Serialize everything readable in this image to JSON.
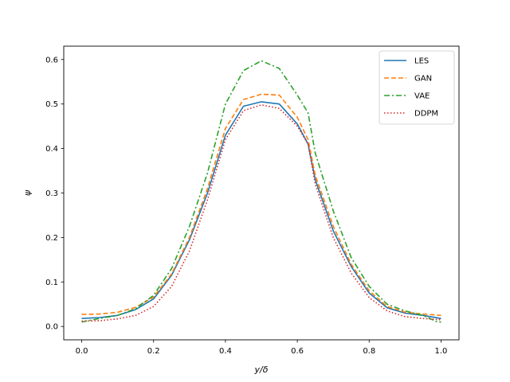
{
  "chart_data": {
    "type": "line",
    "title": "",
    "xlabel": "y/δ",
    "ylabel": "ψ",
    "xlim": [
      -0.05,
      1.05
    ],
    "ylim": [
      -0.03,
      0.63
    ],
    "xticks": [
      0.0,
      0.2,
      0.4,
      0.6,
      0.8,
      1.0
    ],
    "xtick_labels": [
      "0.0",
      "0.2",
      "0.4",
      "0.6",
      "0.8",
      "1.0"
    ],
    "yticks": [
      0.0,
      0.1,
      0.2,
      0.3,
      0.4,
      0.5,
      0.6
    ],
    "ytick_labels": [
      "0.0",
      "0.1",
      "0.2",
      "0.3",
      "0.4",
      "0.5",
      "0.6"
    ],
    "grid": false,
    "legend_position": "top-right",
    "series": [
      {
        "name": "LES",
        "color": "#1f77b4",
        "style": "solid",
        "x": [
          0.0,
          0.05,
          0.1,
          0.15,
          0.2,
          0.25,
          0.3,
          0.35,
          0.4,
          0.45,
          0.5,
          0.55,
          0.6,
          0.63,
          0.65,
          0.7,
          0.75,
          0.8,
          0.85,
          0.9,
          0.95,
          1.0
        ],
        "y": [
          0.018,
          0.02,
          0.025,
          0.038,
          0.062,
          0.115,
          0.195,
          0.3,
          0.43,
          0.495,
          0.505,
          0.5,
          0.455,
          0.41,
          0.33,
          0.215,
          0.135,
          0.075,
          0.042,
          0.03,
          0.025,
          0.018
        ]
      },
      {
        "name": "GAN",
        "color": "#ff7f0e",
        "style": "dashed",
        "x": [
          0.0,
          0.05,
          0.1,
          0.15,
          0.2,
          0.25,
          0.3,
          0.35,
          0.4,
          0.45,
          0.5,
          0.55,
          0.6,
          0.63,
          0.65,
          0.7,
          0.75,
          0.8,
          0.85,
          0.9,
          0.95,
          1.0
        ],
        "y": [
          0.027,
          0.028,
          0.032,
          0.043,
          0.066,
          0.118,
          0.2,
          0.31,
          0.445,
          0.51,
          0.522,
          0.52,
          0.47,
          0.42,
          0.34,
          0.225,
          0.14,
          0.08,
          0.045,
          0.032,
          0.028,
          0.025
        ]
      },
      {
        "name": "VAE",
        "color": "#2ca02c",
        "style": "dashdot",
        "x": [
          0.0,
          0.05,
          0.1,
          0.15,
          0.2,
          0.25,
          0.3,
          0.35,
          0.4,
          0.45,
          0.5,
          0.55,
          0.6,
          0.63,
          0.65,
          0.7,
          0.75,
          0.8,
          0.85,
          0.9,
          0.95,
          0.99,
          1.0
        ],
        "y": [
          0.01,
          0.018,
          0.025,
          0.04,
          0.07,
          0.13,
          0.225,
          0.345,
          0.5,
          0.575,
          0.597,
          0.58,
          0.52,
          0.48,
          0.39,
          0.26,
          0.155,
          0.09,
          0.05,
          0.035,
          0.025,
          0.01,
          0.01
        ]
      },
      {
        "name": "DDPM",
        "color": "#d62728",
        "style": "dotted",
        "x": [
          0.0,
          0.05,
          0.1,
          0.15,
          0.2,
          0.25,
          0.3,
          0.35,
          0.4,
          0.45,
          0.5,
          0.55,
          0.6,
          0.63,
          0.65,
          0.7,
          0.75,
          0.8,
          0.85,
          0.9,
          0.95,
          1.0
        ],
        "y": [
          0.012,
          0.013,
          0.017,
          0.025,
          0.045,
          0.09,
          0.17,
          0.285,
          0.42,
          0.485,
          0.498,
          0.49,
          0.45,
          0.41,
          0.32,
          0.2,
          0.12,
          0.065,
          0.035,
          0.022,
          0.018,
          0.015
        ]
      }
    ]
  }
}
